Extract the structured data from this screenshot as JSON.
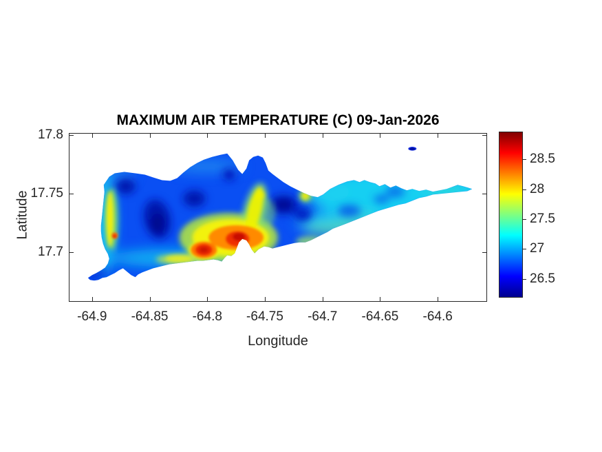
{
  "title": "MAXIMUM AIR TEMPERATURE (C) 09-Jan-2026",
  "axes": {
    "xlabel": "Longitude",
    "ylabel": "Latitude",
    "xlim": [
      -64.9196,
      -64.5577
    ],
    "ylim": [
      17.6579,
      17.8012
    ],
    "xticks": [
      -64.9,
      -64.85,
      -64.8,
      -64.75,
      -64.7,
      -64.65,
      -64.6
    ],
    "xtick_labels": [
      "-64.9",
      "-64.85",
      "-64.8",
      "-64.75",
      "-64.7",
      "-64.65",
      "-64.6"
    ],
    "yticks": [
      17.8,
      17.75,
      17.7
    ],
    "ytick_labels": [
      "17.8",
      "17.75",
      "17.7"
    ],
    "axis_color": "#262626"
  },
  "colorbar": {
    "colormap": "jet",
    "range": [
      26.2,
      28.95
    ],
    "ticks": [
      26.5,
      27,
      27.5,
      28,
      28.5
    ],
    "tick_labels": [
      "26.5",
      "27",
      "27.5",
      "28",
      "28.5"
    ]
  },
  "chart_data": {
    "type": "heatmap",
    "subtype": "filled-contour-map-of-island",
    "title": "MAXIMUM AIR TEMPERATURE (C) 09-Jan-2026",
    "xlabel": "Longitude",
    "ylabel": "Latitude",
    "units": "degrees Celsius",
    "xlim": [
      -64.92,
      -64.56
    ],
    "ylim": [
      17.66,
      17.8
    ],
    "colorbar_range": [
      26.2,
      28.95
    ],
    "colorbar_ticks": [
      26.5,
      27,
      27.5,
      28,
      28.5
    ],
    "grid": false,
    "legend_position": "colorbar-right",
    "island_extent": {
      "lon_min": -64.9,
      "lon_max": -64.57,
      "lat_min": 17.675,
      "lat_max": 17.785
    },
    "features": [
      {
        "description": "hottest red core, south-central coast (east)",
        "lon": -64.77,
        "lat": 17.71,
        "value_c": 28.8
      },
      {
        "description": "second red hot spot, south-central coast (west)",
        "lon": -64.8,
        "lat": 17.7,
        "value_c": 28.6
      },
      {
        "description": "orange-red dot on far west coast",
        "lon": -64.88,
        "lat": 17.71,
        "value_c": 28.3
      },
      {
        "description": "warm yellow strip along west coast",
        "lon": -64.885,
        "lat": 17.73,
        "value_c": 27.9
      },
      {
        "description": "small yellow warm spot on north-central coast",
        "lon": -64.715,
        "lat": 17.75,
        "value_c": 27.9
      },
      {
        "description": "yellow tongue extending north from hot zone",
        "lon": -64.76,
        "lat": 17.74,
        "value_c": 27.8
      },
      {
        "description": "coldest dark-blue patch, west-central interior",
        "lon": -64.84,
        "lat": 17.73,
        "value_c": 26.3
      },
      {
        "description": "cold patch, northwest interior",
        "lon": -64.87,
        "lat": 17.76,
        "value_c": 26.35
      },
      {
        "description": "cold patch, north-central interior",
        "lon": -64.81,
        "lat": 17.75,
        "value_c": 26.35
      },
      {
        "description": "cold patch, north interior east of center",
        "lon": -64.73,
        "lat": 17.74,
        "value_c": 26.35
      },
      {
        "description": "cold spot beside north coastal notch",
        "lon": -64.78,
        "lat": 17.77,
        "value_c": 26.4
      },
      {
        "description": "small detached offshore islet to the northeast (dark blue)",
        "lon": -64.62,
        "lat": 17.79,
        "value_c": 26.4
      },
      {
        "description": "typical interior value, western half (blue)",
        "lon": -64.83,
        "lat": 17.74,
        "value_c": 26.7
      },
      {
        "description": "typical value along eastern tail (cyan)",
        "lon": -64.63,
        "lat": 17.75,
        "value_c": 27.1
      },
      {
        "description": "southwest peninsula strip (dark blue)",
        "lon": -64.9,
        "lat": 17.68,
        "value_c": 26.5
      }
    ]
  }
}
